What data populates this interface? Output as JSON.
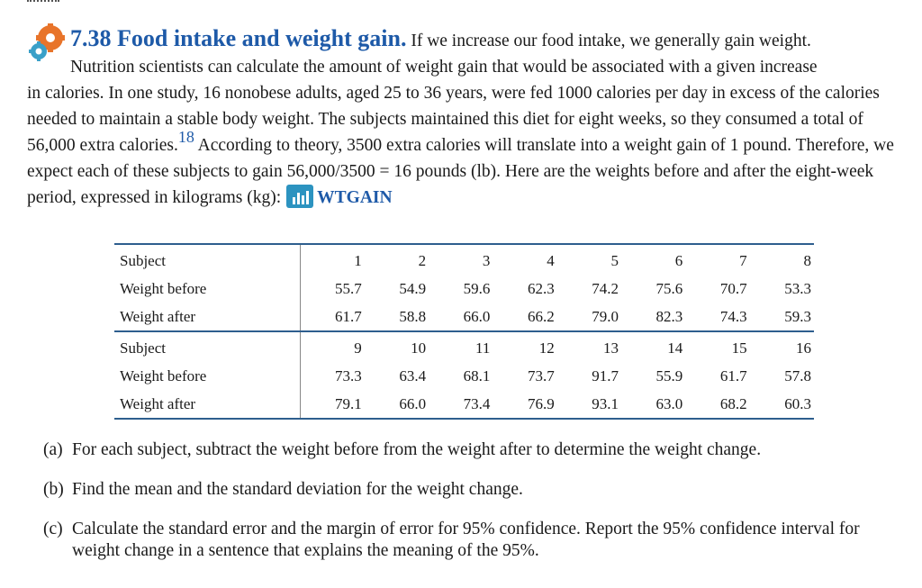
{
  "exercise": {
    "number_title": "7.38 Food intake and weight gain.",
    "intro": "If we increase our food intake, we generally gain weight.",
    "line2": "Nutrition scientists can calculate the amount of weight gain that would be associated with a given increase",
    "body_before_footnote": "in calories. In one study, 16 nonobese adults, aged 25 to 36 years, were fed 1000 calories per day in excess of the calories needed to maintain a stable body weight. The subjects maintained this diet for eight weeks, so they consumed a total of 56,000 extra calories.",
    "footnote_ref": "18",
    "body_after_footnote": " According to theory, 3500 extra calories will translate into a weight gain of 1 pound. Therefore, we expect each of these subjects to gain 56,000/3500 = 16 pounds (lb). Here are the weights before and after the eight-week period, expressed in kilograms (kg):",
    "dataset_name": "WTGAIN"
  },
  "table": {
    "blocks": [
      {
        "subject_label": "Subject",
        "subjects": [
          "1",
          "2",
          "3",
          "4",
          "5",
          "6",
          "7",
          "8"
        ],
        "before_label": "Weight before",
        "before": [
          "55.7",
          "54.9",
          "59.6",
          "62.3",
          "74.2",
          "75.6",
          "70.7",
          "53.3"
        ],
        "after_label": "Weight after",
        "after": [
          "61.7",
          "58.8",
          "66.0",
          "66.2",
          "79.0",
          "82.3",
          "74.3",
          "59.3"
        ]
      },
      {
        "subject_label": "Subject",
        "subjects": [
          "9",
          "10",
          "11",
          "12",
          "13",
          "14",
          "15",
          "16"
        ],
        "before_label": "Weight before",
        "before": [
          "73.3",
          "63.4",
          "68.1",
          "73.7",
          "91.7",
          "55.9",
          "61.7",
          "57.8"
        ],
        "after_label": "Weight after",
        "after": [
          "79.1",
          "66.0",
          "73.4",
          "76.9",
          "93.1",
          "63.0",
          "68.2",
          "60.3"
        ]
      }
    ]
  },
  "questions": [
    {
      "letter": "(a)",
      "text": "For each subject, subtract the weight before from the weight after to determine the weight change."
    },
    {
      "letter": "(b)",
      "text": "Find the mean and the standard deviation for the weight change."
    },
    {
      "letter": "(c)",
      "text": "Calculate the standard error and the margin of error for 95% confidence. Report the 95% confidence interval for weight change in a sentence that explains the meaning of the 95%."
    }
  ],
  "icons": {
    "exercise_icon": "gears-exercise-icon",
    "data_icon": "bar-chart-data-icon",
    "accent_color": "#1e5aa8",
    "data_icon_color": "#2c93c0"
  }
}
